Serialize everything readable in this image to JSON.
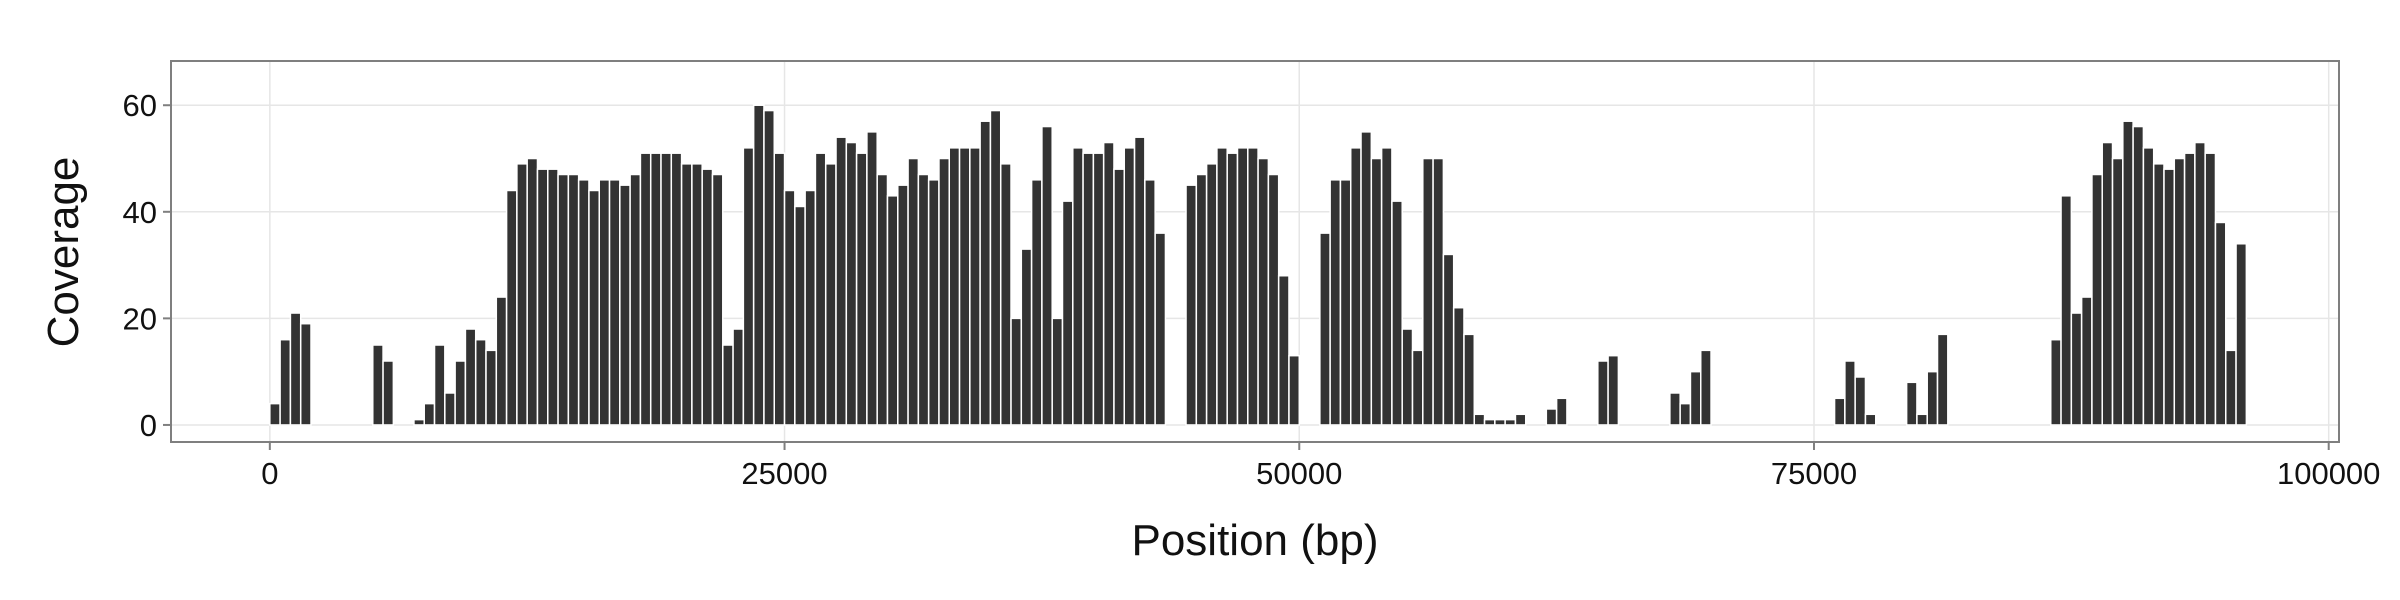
{
  "chart_data": {
    "type": "histogram",
    "xlabel": "Position (bp)",
    "ylabel": "Coverage",
    "color": "#333333",
    "grid": true,
    "xlim": [
      -4800,
      100500
    ],
    "ylim": [
      -3.2,
      68.3
    ],
    "xticks": [
      0,
      25000,
      50000,
      75000,
      100000
    ],
    "yticks": [
      0,
      20,
      40,
      60
    ],
    "bins": [
      0,
      500,
      1000,
      1500,
      2000,
      2500,
      3000,
      3500,
      4000,
      4500,
      5000,
      5500,
      6000,
      6500,
      7000,
      7500,
      8000,
      8500,
      9000,
      9500,
      10000,
      10500,
      11000,
      11500,
      12000,
      12500,
      13000,
      13500,
      14000,
      14500,
      15000,
      15500,
      16000,
      16500,
      17000,
      17500,
      18000,
      18500,
      19000,
      19500,
      20000,
      20500,
      21000,
      21500,
      22000,
      22500,
      23000,
      23500,
      24000,
      24500,
      25000,
      25500,
      26000,
      26500,
      27000,
      27500,
      28000,
      28500,
      29000,
      29500,
      30000,
      30500,
      31000,
      31500,
      32000,
      32500,
      33000,
      33500,
      34000,
      34500,
      35000,
      35500,
      36000,
      36500,
      37000,
      37500,
      38000,
      38500,
      39000,
      39500,
      40000,
      40500,
      41000,
      41500,
      42000,
      42500,
      43000,
      43500,
      44000,
      44500,
      45000,
      45500,
      46000,
      46500,
      47000,
      47500,
      48000,
      48500,
      49000,
      49500,
      50000,
      50500,
      51000,
      51500,
      52000,
      52500,
      53000,
      53500,
      54000,
      54500,
      55000,
      55500,
      56000,
      56500,
      57000,
      57500,
      58000,
      58500,
      59000,
      59500,
      60000,
      60500,
      61000,
      61500,
      62000,
      62500,
      63000,
      63500,
      64000,
      64500,
      65000,
      65500,
      66000,
      66500,
      67000,
      67500,
      68000,
      68500,
      69000,
      69500,
      70000,
      70500,
      71000,
      71500,
      72000,
      72500,
      73000,
      73500,
      74000,
      74500,
      75000,
      75500,
      76000,
      76500,
      77000,
      77500,
      78000,
      78500,
      79000,
      79500,
      80000,
      80500,
      81000,
      81500,
      82000,
      82500,
      83000,
      83500,
      84000,
      84500,
      85000,
      85500,
      86000,
      86500,
      87000,
      87500,
      88000,
      88500,
      89000,
      89500,
      90000,
      90500,
      91000,
      91500,
      92000,
      92500,
      93000,
      93500,
      94000,
      94500,
      95000,
      95500,
      96000
    ],
    "values": [
      4,
      16,
      21,
      19,
      0,
      0,
      0,
      0,
      0,
      0,
      15,
      12,
      0,
      0,
      1,
      4,
      15,
      6,
      12,
      18,
      16,
      14,
      24,
      44,
      49,
      50,
      48,
      48,
      47,
      47,
      46,
      44,
      46,
      46,
      45,
      47,
      51,
      51,
      51,
      51,
      49,
      49,
      48,
      47,
      15,
      18,
      52,
      60,
      59,
      51,
      44,
      41,
      44,
      51,
      49,
      54,
      53,
      51,
      55,
      47,
      43,
      45,
      50,
      47,
      46,
      50,
      52,
      52,
      52,
      57,
      59,
      49,
      20,
      33,
      46,
      56,
      20,
      42,
      52,
      51,
      51,
      53,
      48,
      52,
      54,
      46,
      36,
      0,
      0,
      45,
      47,
      49,
      52,
      51,
      52,
      52,
      50,
      47,
      28,
      13,
      0,
      0,
      36,
      46,
      46,
      52,
      55,
      50,
      52,
      42,
      18,
      14,
      50,
      50,
      32,
      22,
      17,
      2,
      1,
      1,
      1,
      2,
      0,
      0,
      3,
      5,
      0,
      0,
      0,
      12,
      13,
      0,
      0,
      0,
      0,
      0,
      6,
      4,
      10,
      14,
      0,
      0,
      0,
      0,
      0,
      0,
      0,
      0,
      0,
      0,
      0,
      0,
      5,
      12,
      9,
      2,
      0,
      0,
      0,
      8,
      2,
      10,
      17,
      0,
      0,
      0,
      0,
      0,
      0,
      0,
      0,
      0,
      0,
      16,
      43,
      21,
      24,
      47,
      53,
      50,
      57,
      56,
      52,
      49,
      48,
      50,
      51,
      53,
      51,
      38,
      14,
      34
    ]
  }
}
